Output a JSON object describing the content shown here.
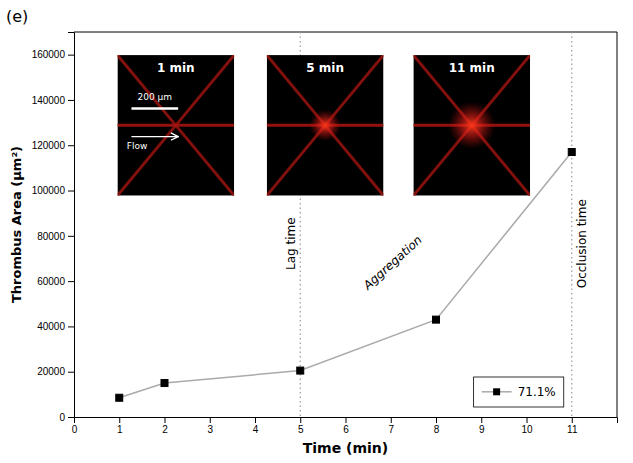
{
  "chart_data": {
    "type": "line",
    "title": "(e)",
    "x": [
      1,
      2,
      5,
      8,
      11
    ],
    "series": [
      {
        "name": "71.1%",
        "color": "#aaaaaa",
        "colors": [
          "#000000",
          "#000000",
          "#000000",
          "#000000",
          "#000000"
        ],
        "marker": "square",
        "line_style": "solid",
        "values": [
          8500,
          15000,
          20500,
          43000,
          117000
        ]
      }
    ],
    "xlabel": "Time (min)",
    "ylabel": "Thrombus Area (μm²)",
    "xlim": [
      0,
      12
    ],
    "ylim": [
      0,
      170000
    ],
    "xticks": [
      0,
      1,
      2,
      3,
      4,
      5,
      6,
      7,
      8,
      9,
      10,
      11
    ],
    "yticks": [
      0,
      20000,
      40000,
      60000,
      80000,
      100000,
      120000,
      140000,
      160000
    ],
    "grid": false,
    "legend": "lower right",
    "vlines": [
      {
        "x": 5,
        "label": "Lag time",
        "color": "#999999",
        "line_style": "dotted"
      },
      {
        "x": 11,
        "label": "Occlusion time",
        "color": "#999999",
        "line_style": "dotted"
      }
    ],
    "annotations": [
      "Aggregation"
    ],
    "insets": [
      {
        "label": "1 min",
        "annotations": [
          "Flow",
          "200 μm"
        ]
      },
      {
        "label": "5 min"
      },
      {
        "label": "11 min"
      }
    ]
  }
}
